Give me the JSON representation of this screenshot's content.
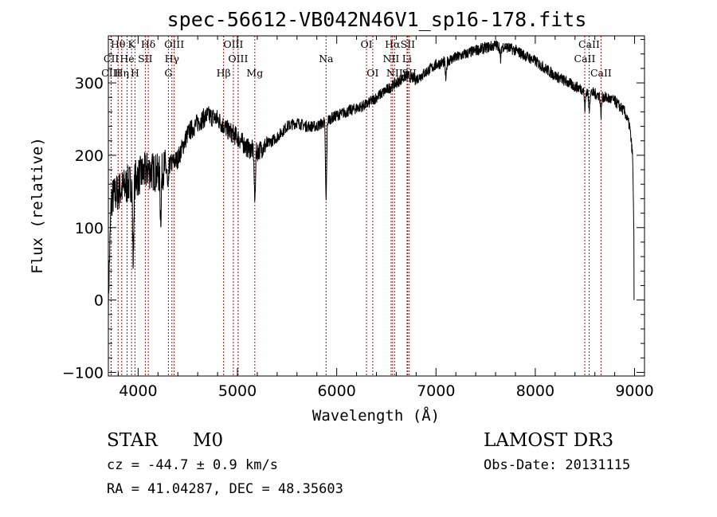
{
  "chart_data": {
    "type": "line",
    "title": "spec-56612-VB042N46V1_sp16-178.fits",
    "xlabel": "Wavelength (Å)",
    "ylabel": "Flux (relative)",
    "xlim": [
      3700,
      9100
    ],
    "ylim": [
      -105,
      365
    ],
    "xticks": [
      4000,
      5000,
      6000,
      7000,
      8000,
      9000
    ],
    "yticks": [
      -100,
      0,
      100,
      200,
      300
    ],
    "continuum_anchors": {
      "x": [
        3700,
        3730,
        3800,
        3900,
        4000,
        4100,
        4200,
        4300,
        4400,
        4500,
        4600,
        4700,
        4800,
        4900,
        5000,
        5100,
        5200,
        5300,
        5400,
        5500,
        5600,
        5700,
        5800,
        5900,
        6000,
        6100,
        6200,
        6300,
        6400,
        6500,
        6600,
        6700,
        6800,
        7000,
        7200,
        7400,
        7600,
        7700,
        7800,
        8000,
        8200,
        8400,
        8600,
        8800,
        8900,
        8950,
        8980,
        8995
      ],
      "y": [
        0,
        140,
        150,
        160,
        170,
        180,
        175,
        185,
        195,
        230,
        245,
        255,
        250,
        235,
        225,
        210,
        205,
        215,
        225,
        240,
        245,
        240,
        240,
        248,
        255,
        260,
        265,
        270,
        280,
        290,
        300,
        310,
        305,
        325,
        335,
        345,
        352,
        350,
        345,
        330,
        310,
        295,
        285,
        275,
        260,
        240,
        200,
        80
      ]
    },
    "absorption_features": [
      {
        "center": 3950,
        "depth": 110
      },
      {
        "center": 4227,
        "depth": 60
      },
      {
        "center": 4300,
        "depth": 40
      },
      {
        "center": 5175,
        "depth": 70
      },
      {
        "center": 5893,
        "depth": 110
      },
      {
        "center": 7100,
        "depth": 25
      },
      {
        "center": 7650,
        "depth": 20
      },
      {
        "center": 8500,
        "depth": 25
      },
      {
        "center": 8542,
        "depth": 25
      },
      {
        "center": 8662,
        "depth": 25
      }
    ],
    "spectral_lines": [
      {
        "label": "Hθ",
        "wavelength": 3798,
        "row": 0
      },
      {
        "label": "K",
        "wavelength": 3934,
        "row": 0
      },
      {
        "label": "Hδ",
        "wavelength": 4102,
        "row": 0
      },
      {
        "label": "OIII",
        "wavelength": 4363,
        "row": 0
      },
      {
        "label": "OIII",
        "wavelength": 4959,
        "row": 0
      },
      {
        "label": "OI",
        "wavelength": 6300,
        "row": 0
      },
      {
        "label": "Hα",
        "wavelength": 6563,
        "row": 0
      },
      {
        "label": "SII",
        "wavelength": 6716,
        "row": 0
      },
      {
        "label": "CaII",
        "wavelength": 8542,
        "row": 0
      },
      {
        "label": "CII",
        "wavelength": 3729,
        "row": 1
      },
      {
        "label": "He",
        "wavelength": 3889,
        "row": 1
      },
      {
        "label": "SII",
        "wavelength": 4072,
        "row": 1
      },
      {
        "label": "Hγ",
        "wavelength": 4340,
        "row": 1
      },
      {
        "label": "OIII",
        "wavelength": 5007,
        "row": 1
      },
      {
        "label": "Na",
        "wavelength": 5893,
        "row": 1
      },
      {
        "label": "NII",
        "wavelength": 6548,
        "row": 1
      },
      {
        "label": "Li",
        "wavelength": 6708,
        "row": 1
      },
      {
        "label": "CaII",
        "wavelength": 8498,
        "row": 1
      },
      {
        "label": "CIII",
        "wavelength": 3727,
        "row": 2
      },
      {
        "label": "Hη",
        "wavelength": 3835,
        "row": 2
      },
      {
        "label": "H",
        "wavelength": 3968,
        "row": 2
      },
      {
        "label": "G",
        "wavelength": 4305,
        "row": 2
      },
      {
        "label": "Hβ",
        "wavelength": 4861,
        "row": 2
      },
      {
        "label": "Mg",
        "wavelength": 5175,
        "row": 2
      },
      {
        "label": "OI",
        "wavelength": 6363,
        "row": 2
      },
      {
        "label": "NII",
        "wavelength": 6583,
        "row": 2
      },
      {
        "label": "SII",
        "wavelength": 6731,
        "row": 2
      },
      {
        "label": "CaII",
        "wavelength": 8662,
        "row": 2
      }
    ],
    "marker_lines": [
      3727,
      3729,
      3798,
      3835,
      3889,
      3934,
      3968,
      4072,
      4102,
      4305,
      4340,
      4363,
      4861,
      4959,
      5007,
      5175,
      5893,
      6300,
      6363,
      6548,
      6563,
      6583,
      6708,
      6716,
      6731,
      8498,
      8542,
      8662
    ],
    "marker_color": "#cc0000"
  },
  "info": {
    "class": "STAR",
    "subclass": "M0",
    "survey": "LAMOST DR3",
    "cz": "cz = -44.7 ± 0.9 km/s",
    "obs_date": "Obs-Date: 20131115",
    "coords": "RA =  41.04287, DEC =  48.35603"
  }
}
